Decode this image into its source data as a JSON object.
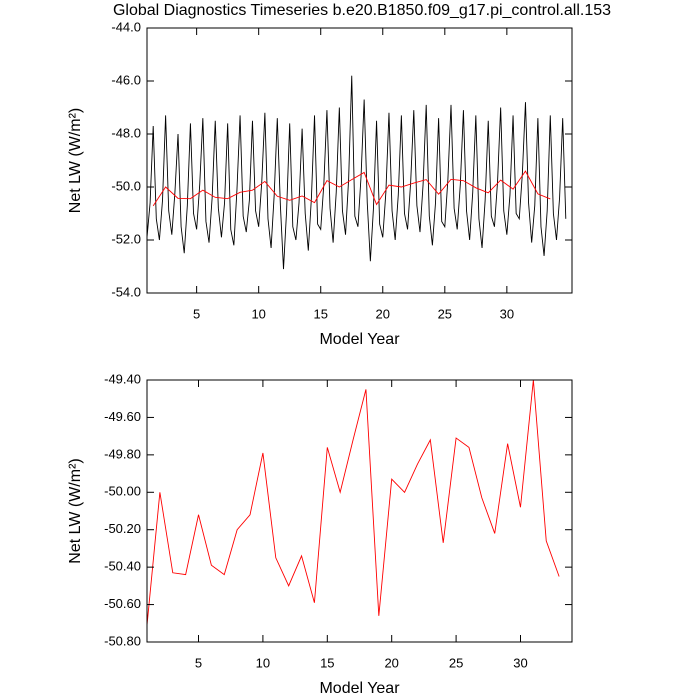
{
  "chart_data": [
    {
      "type": "line",
      "title": "Global Diagnostics Timeseries b.e20.B1850.f09_g17.pi_control.all.153",
      "xlabel": "Model Year",
      "ylabel": "Net LW (W/m²)",
      "xlim": [
        1,
        35.25
      ],
      "ylim": [
        -54,
        -44
      ],
      "xticks": [
        5,
        10,
        15,
        20,
        25,
        30
      ],
      "yticks": [
        {
          "value": -54,
          "label": "-54.0"
        },
        {
          "value": -52,
          "label": "-52.0"
        },
        {
          "value": -50,
          "label": "-50.0"
        },
        {
          "value": -48,
          "label": "-48.0"
        },
        {
          "value": -46,
          "label": "-46.0"
        },
        {
          "value": -44,
          "label": "-44.0"
        }
      ],
      "series": [
        {
          "color": "#000000",
          "x": [
            1,
            1.25,
            1.5,
            1.75,
            2,
            2.25,
            2.5,
            2.75,
            3,
            3.25,
            3.5,
            3.75,
            4,
            4.25,
            4.5,
            4.75,
            5,
            5.25,
            5.5,
            5.75,
            6,
            6.25,
            6.5,
            6.75,
            7,
            7.25,
            7.5,
            7.75,
            8,
            8.25,
            8.5,
            8.75,
            9,
            9.25,
            9.5,
            9.75,
            10,
            10.25,
            10.5,
            10.75,
            11,
            11.25,
            11.5,
            11.75,
            12,
            12.25,
            12.5,
            12.75,
            13,
            13.25,
            13.5,
            13.75,
            14,
            14.25,
            14.5,
            14.75,
            15,
            15.25,
            15.5,
            15.75,
            16,
            16.25,
            16.5,
            16.75,
            17,
            17.25,
            17.5,
            17.75,
            18,
            18.25,
            18.5,
            18.75,
            19,
            19.25,
            19.5,
            19.75,
            20,
            20.25,
            20.5,
            20.75,
            21,
            21.25,
            21.5,
            21.75,
            22,
            22.25,
            22.5,
            22.75,
            23,
            23.25,
            23.5,
            23.75,
            24,
            24.25,
            24.5,
            24.75,
            25,
            25.25,
            25.5,
            25.75,
            26,
            26.25,
            26.5,
            26.75,
            27,
            27.25,
            27.5,
            27.75,
            28,
            28.25,
            28.5,
            28.75,
            29,
            29.25,
            29.5,
            29.75,
            30,
            30.25,
            30.5,
            30.75,
            31,
            31.25,
            31.5,
            31.75,
            32,
            32.25,
            32.5,
            32.75,
            33,
            33.25,
            33.5,
            33.75,
            34,
            34.25,
            34.5,
            34.75
          ],
          "values": [
            -51.9,
            -50.6,
            -47.7,
            -51.2,
            -52.0,
            -50.5,
            -47.3,
            -50.9,
            -51.8,
            -50.2,
            -48.0,
            -51.5,
            -52.5,
            -50.7,
            -47.6,
            -51.0,
            -51.6,
            -49.9,
            -47.4,
            -51.3,
            -52.1,
            -50.4,
            -47.5,
            -50.8,
            -51.9,
            -50.6,
            -47.6,
            -51.6,
            -52.2,
            -50.1,
            -47.3,
            -51.1,
            -51.7,
            -50.5,
            -47.5,
            -50.9,
            -51.5,
            -49.8,
            -47.2,
            -51.2,
            -52.3,
            -50.3,
            -47.4,
            -50.7,
            -53.1,
            -50.9,
            -47.6,
            -51.5,
            -52.0,
            -50.6,
            -47.8,
            -51.0,
            -52.4,
            -50.4,
            -47.3,
            -51.4,
            -51.6,
            -49.9,
            -47.1,
            -50.8,
            -52.1,
            -50.2,
            -47.0,
            -50.9,
            -51.8,
            -49.7,
            -45.8,
            -51.1,
            -51.5,
            -49.6,
            -46.7,
            -50.6,
            -52.8,
            -50.8,
            -47.5,
            -51.4,
            -51.9,
            -50.2,
            -47.2,
            -50.9,
            -52.0,
            -50.3,
            -47.3,
            -51.0,
            -51.6,
            -49.8,
            -47.1,
            -50.7,
            -51.7,
            -49.9,
            -46.9,
            -51.1,
            -52.2,
            -50.6,
            -47.4,
            -51.3,
            -51.5,
            -49.7,
            -46.9,
            -50.8,
            -51.6,
            -49.9,
            -47.1,
            -50.9,
            -52.0,
            -50.2,
            -47.3,
            -51.2,
            -52.3,
            -50.5,
            -47.5,
            -51.1,
            -51.5,
            -49.8,
            -47.0,
            -50.9,
            -51.8,
            -50.3,
            -47.3,
            -51.0,
            -51.2,
            -49.5,
            -46.8,
            -50.6,
            -52.1,
            -50.7,
            -47.4,
            -51.5,
            -52.6,
            -50.9,
            -47.3,
            -51.0,
            -52.0,
            -50.4,
            -47.4,
            -51.2
          ]
        },
        {
          "color": "#ff0000",
          "x": [
            1.5,
            2.5,
            3.5,
            4.5,
            5.5,
            6.5,
            7.5,
            8.5,
            9.5,
            10.5,
            11.5,
            12.5,
            13.5,
            14.5,
            15.5,
            16.5,
            17.5,
            18.5,
            19.5,
            20.5,
            21.5,
            22.5,
            23.5,
            24.5,
            25.5,
            26.5,
            27.5,
            28.5,
            29.5,
            30.5,
            31.5,
            32.5,
            33.5
          ],
          "values": [
            -50.71,
            -50.0,
            -50.43,
            -50.44,
            -50.12,
            -50.39,
            -50.44,
            -50.2,
            -50.12,
            -49.79,
            -50.35,
            -50.5,
            -50.34,
            -50.59,
            -49.76,
            -50.0,
            -49.72,
            -49.45,
            -50.66,
            -49.93,
            -50.0,
            -49.85,
            -49.72,
            -50.27,
            -49.71,
            -49.76,
            -50.03,
            -50.22,
            -49.74,
            -50.08,
            -49.4,
            -50.26,
            -50.45
          ]
        }
      ]
    },
    {
      "type": "line",
      "xlabel": "Model Year",
      "ylabel": "Net LW (W/m²)",
      "xlim": [
        1,
        34
      ],
      "ylim": [
        -50.8,
        -49.4
      ],
      "xticks": [
        5,
        10,
        15,
        20,
        25,
        30
      ],
      "yticks": [
        {
          "value": -50.8,
          "label": "-50.80"
        },
        {
          "value": -50.6,
          "label": "-50.60"
        },
        {
          "value": -50.4,
          "label": "-50.40"
        },
        {
          "value": -50.2,
          "label": "-50.20"
        },
        {
          "value": -50.0,
          "label": "-50.00"
        },
        {
          "value": -49.8,
          "label": "-49.80"
        },
        {
          "value": -49.6,
          "label": "-49.60"
        },
        {
          "value": -49.4,
          "label": "-49.40"
        }
      ],
      "series": [
        {
          "color": "#ff0000",
          "x": [
            1,
            2,
            3,
            4,
            5,
            6,
            7,
            8,
            9,
            10,
            11,
            12,
            13,
            14,
            15,
            16,
            17,
            18,
            19,
            20,
            21,
            22,
            23,
            24,
            25,
            26,
            27,
            28,
            29,
            30,
            31,
            32,
            33
          ],
          "values": [
            -50.71,
            -50.0,
            -50.43,
            -50.44,
            -50.12,
            -50.39,
            -50.44,
            -50.2,
            -50.12,
            -49.79,
            -50.35,
            -50.5,
            -50.34,
            -50.59,
            -49.76,
            -50.0,
            -49.72,
            -49.45,
            -50.66,
            -49.93,
            -50.0,
            -49.85,
            -49.72,
            -50.27,
            -49.71,
            -49.76,
            -50.03,
            -50.22,
            -49.74,
            -50.08,
            -49.4,
            -50.26,
            -50.45
          ]
        }
      ]
    }
  ]
}
